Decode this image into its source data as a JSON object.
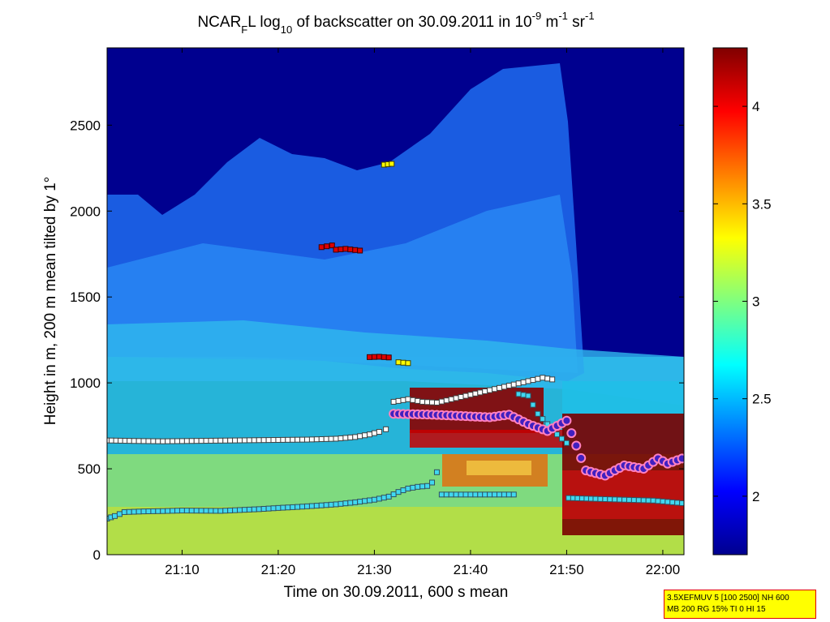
{
  "chart_data": {
    "type": "heatmap",
    "title": {
      "prefix": "NCAR",
      "sub_F": "F",
      "suffix1": "L log",
      "sub_10": "10",
      "suffix2": " of backscatter on 30.09.2011 in 10",
      "sup_exp": "-9",
      "m_text": " m",
      "sup_m": "-1",
      "sr_text": " sr",
      "sup_sr": "-1"
    },
    "xlabel": "Time on 30.09.2011, 600 s mean",
    "ylabel": "Height in m, 200 m mean tilted by 1°",
    "x_range_minutes": [
      2.2,
      62.2
    ],
    "x_ticks": [
      {
        "minute": 10,
        "label": "21:10"
      },
      {
        "minute": 20,
        "label": "21:20"
      },
      {
        "minute": 30,
        "label": "21:30"
      },
      {
        "minute": 40,
        "label": "21:40"
      },
      {
        "minute": 50,
        "label": "21:50"
      },
      {
        "minute": 60,
        "label": "22:00"
      }
    ],
    "ylim": [
      0,
      2950
    ],
    "y_ticks": [
      0,
      500,
      1000,
      1500,
      2000,
      2500
    ],
    "colorbar": {
      "range": [
        1.7,
        4.3
      ],
      "ticks": [
        "2",
        "2.5",
        "3",
        "3.5",
        "4"
      ],
      "colormap": "jet"
    },
    "series": [
      {
        "marker": "white-square",
        "points": [
          [
            2.2,
            665
          ],
          [
            5,
            662
          ],
          [
            8,
            660
          ],
          [
            11,
            662
          ],
          [
            14,
            664
          ],
          [
            17,
            666
          ],
          [
            20,
            668
          ],
          [
            23,
            670
          ],
          [
            26,
            675
          ],
          [
            28,
            685
          ],
          [
            29.5,
            700
          ],
          [
            30.5,
            715
          ],
          [
            31.2,
            730
          ]
        ]
      },
      {
        "marker": "cyan-square",
        "points": [
          [
            2.2,
            210
          ],
          [
            3,
            225
          ],
          [
            4,
            248
          ],
          [
            6,
            252
          ],
          [
            8,
            254
          ],
          [
            10,
            257
          ],
          [
            12,
            256
          ],
          [
            14,
            255
          ],
          [
            16,
            260
          ],
          [
            18,
            265
          ],
          [
            20,
            272
          ],
          [
            22,
            278
          ],
          [
            24,
            285
          ],
          [
            26,
            293
          ],
          [
            28,
            305
          ],
          [
            30,
            320
          ],
          [
            31.5,
            338
          ],
          [
            32.5,
            365
          ],
          [
            33.5,
            385
          ],
          [
            34.5,
            395
          ],
          [
            35.5,
            400
          ],
          [
            36,
            420
          ],
          [
            36.5,
            480
          ]
        ]
      },
      {
        "marker": "cyan-square",
        "points": [
          [
            37,
            350
          ],
          [
            40,
            350
          ],
          [
            43,
            350
          ],
          [
            44.5,
            350
          ]
        ]
      },
      {
        "marker": "cyan-square",
        "points": [
          [
            50.2,
            330
          ],
          [
            53,
            325
          ],
          [
            56,
            320
          ],
          [
            59,
            315
          ],
          [
            62,
            300
          ]
        ]
      },
      {
        "marker": "cyan-square",
        "points": [
          [
            45,
            935
          ],
          [
            46,
            925
          ],
          [
            47,
            820
          ],
          [
            48,
            760
          ],
          [
            49,
            700
          ],
          [
            50,
            650
          ]
        ]
      },
      {
        "marker": "white-square",
        "points": [
          [
            32,
            890
          ],
          [
            33.5,
            905
          ],
          [
            35,
            890
          ],
          [
            36.5,
            885
          ],
          [
            47.5,
            1030
          ],
          [
            48.5,
            1020
          ]
        ]
      },
      {
        "marker": "red-square",
        "points": [
          [
            24.5,
            1790
          ],
          [
            25.6,
            1800
          ],
          [
            26,
            1775
          ],
          [
            27,
            1780
          ],
          [
            28.5,
            1770
          ]
        ]
      },
      {
        "marker": "red-square",
        "points": [
          [
            29.5,
            1150
          ],
          [
            30.5,
            1152
          ],
          [
            31.5,
            1148
          ]
        ]
      },
      {
        "marker": "yellow-square",
        "points": [
          [
            31,
            2270
          ],
          [
            31.8,
            2275
          ],
          [
            32.5,
            1120
          ],
          [
            33.5,
            1115
          ]
        ]
      },
      {
        "marker": "purple-circle",
        "points": [
          [
            32,
            820
          ],
          [
            34,
            818
          ],
          [
            36,
            815
          ],
          [
            38,
            810
          ],
          [
            40,
            805
          ],
          [
            42,
            800
          ],
          [
            44,
            815
          ],
          [
            46,
            760
          ],
          [
            48,
            720
          ],
          [
            50,
            780
          ],
          [
            52,
            490
          ],
          [
            54,
            460
          ],
          [
            56,
            520
          ],
          [
            58,
            500
          ],
          [
            59.5,
            560
          ],
          [
            60.5,
            530
          ],
          [
            62,
            560
          ]
        ]
      }
    ]
  },
  "info_box": {
    "line1": "3.5XEFMUV 5 [100 2500] NH 600",
    "line2": "MB 200 RG 15% TI 0 HI 15"
  }
}
